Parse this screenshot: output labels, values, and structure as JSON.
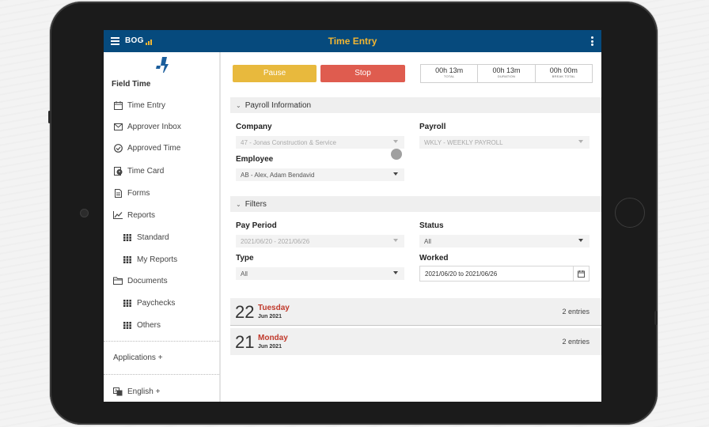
{
  "app": {
    "title": "Time Entry",
    "brand": "BOG",
    "sidebar_title": "Field Time"
  },
  "sidebar": {
    "items": [
      {
        "label": "Time Entry",
        "icon": "calendar-icon"
      },
      {
        "label": "Approver Inbox",
        "icon": "inbox-icon"
      },
      {
        "label": "Approved Time",
        "icon": "check-circle-icon"
      },
      {
        "label": "Time Card",
        "icon": "time-card-icon"
      },
      {
        "label": "Forms",
        "icon": "document-icon"
      },
      {
        "label": "Reports",
        "icon": "line-chart-icon"
      },
      {
        "label": "Standard",
        "icon": "grid-icon"
      },
      {
        "label": "My Reports",
        "icon": "grid-icon"
      },
      {
        "label": "Documents",
        "icon": "folder-icon"
      },
      {
        "label": "Paychecks",
        "icon": "grid-icon"
      },
      {
        "label": "Others",
        "icon": "grid-icon"
      }
    ],
    "applications": "Applications +",
    "language": "English +"
  },
  "controls": {
    "pause": "Pause",
    "stop": "Stop",
    "timers": [
      {
        "value": "00h 13m",
        "label": "TOTAL"
      },
      {
        "value": "00h 13m",
        "label": "DURATION"
      },
      {
        "value": "00h 00m",
        "label": "BREAK TOTAL"
      }
    ]
  },
  "payroll": {
    "section_title": "Payroll Information",
    "company_label": "Company",
    "company_value": "47 - Jonas Construction & Service",
    "payroll_label": "Payroll",
    "payroll_value": "WKLY - WEEKLY PAYROLL",
    "employee_label": "Employee",
    "employee_value": "AB - Alex, Adam Bendavid"
  },
  "filters": {
    "section_title": "Filters",
    "pay_period_label": "Pay Period",
    "pay_period_value": "2021/06/20 - 2021/06/26",
    "status_label": "Status",
    "status_value": "All",
    "type_label": "Type",
    "type_value": "All",
    "worked_label": "Worked",
    "worked_value": "2021/06/20 to 2021/06/26"
  },
  "days": [
    {
      "num": "22",
      "name": "Tuesday",
      "month": "Jun 2021",
      "entries": "2 entries"
    },
    {
      "num": "21",
      "name": "Monday",
      "month": "Jun 2021",
      "entries": "2 entries"
    }
  ],
  "colors": {
    "topbar": "#064a7d",
    "title": "#f2b632",
    "pause": "#e8b93d",
    "stop": "#df5c4f",
    "day_name": "#c0392b"
  }
}
